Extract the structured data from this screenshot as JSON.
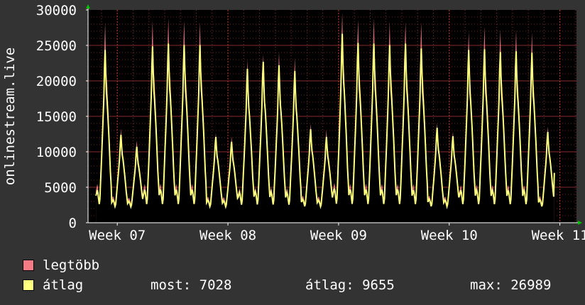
{
  "chart_data": {
    "type": "area",
    "title": "",
    "xlabel": "",
    "ylabel": "onlinestream.live",
    "ylim": [
      0,
      30000
    ],
    "yticks": [
      0,
      5000,
      10000,
      15000,
      20000,
      25000,
      30000
    ],
    "xticks": [
      {
        "label": "Week 07",
        "day": 0
      },
      {
        "label": "Week 08",
        "day": 7
      },
      {
        "label": "Week 09",
        "day": 14
      },
      {
        "label": "Week 10",
        "day": 21
      },
      {
        "label": "Week 11",
        "day": 28
      }
    ],
    "x_unit": "day",
    "xlim": [
      -1.85,
      29.05
    ],
    "grid": true,
    "series": [
      {
        "name": "legtöbb",
        "color": "#f37c84",
        "daily_peaks": [
          28500,
          13400,
          11700,
          28800,
          29100,
          28800,
          28600,
          12800,
          12300,
          23200,
          24000,
          24300,
          23500,
          14100,
          13200,
          29900,
          28900,
          29100,
          28700,
          28600,
          28500,
          14200,
          13000,
          27200,
          28000,
          27500,
          27500,
          27100,
          13700
        ]
      },
      {
        "name": "átlag",
        "color": "#ffff80",
        "daily_peaks": [
          24600,
          12500,
          10800,
          25100,
          25500,
          25300,
          25300,
          12200,
          11500,
          21900,
          22900,
          22400,
          21600,
          13300,
          12200,
          26900,
          25600,
          25500,
          25300,
          25500,
          24800,
          13500,
          12300,
          24600,
          24700,
          24300,
          24400,
          24200,
          12900
        ]
      }
    ]
  },
  "legend": {
    "items": [
      {
        "label": "legtöbb",
        "color": "#f37c84"
      },
      {
        "label": "átlag",
        "color": "#ffff80"
      }
    ],
    "stats": {
      "now": "most: 7028",
      "avg": "átlag: 9655",
      "max": "max: 26989"
    }
  },
  "colors": {
    "background": "#333333",
    "plot_background": "#000000",
    "grid": "#8b2a2a",
    "axis": "#ffffff",
    "arrow": "#00c000"
  }
}
